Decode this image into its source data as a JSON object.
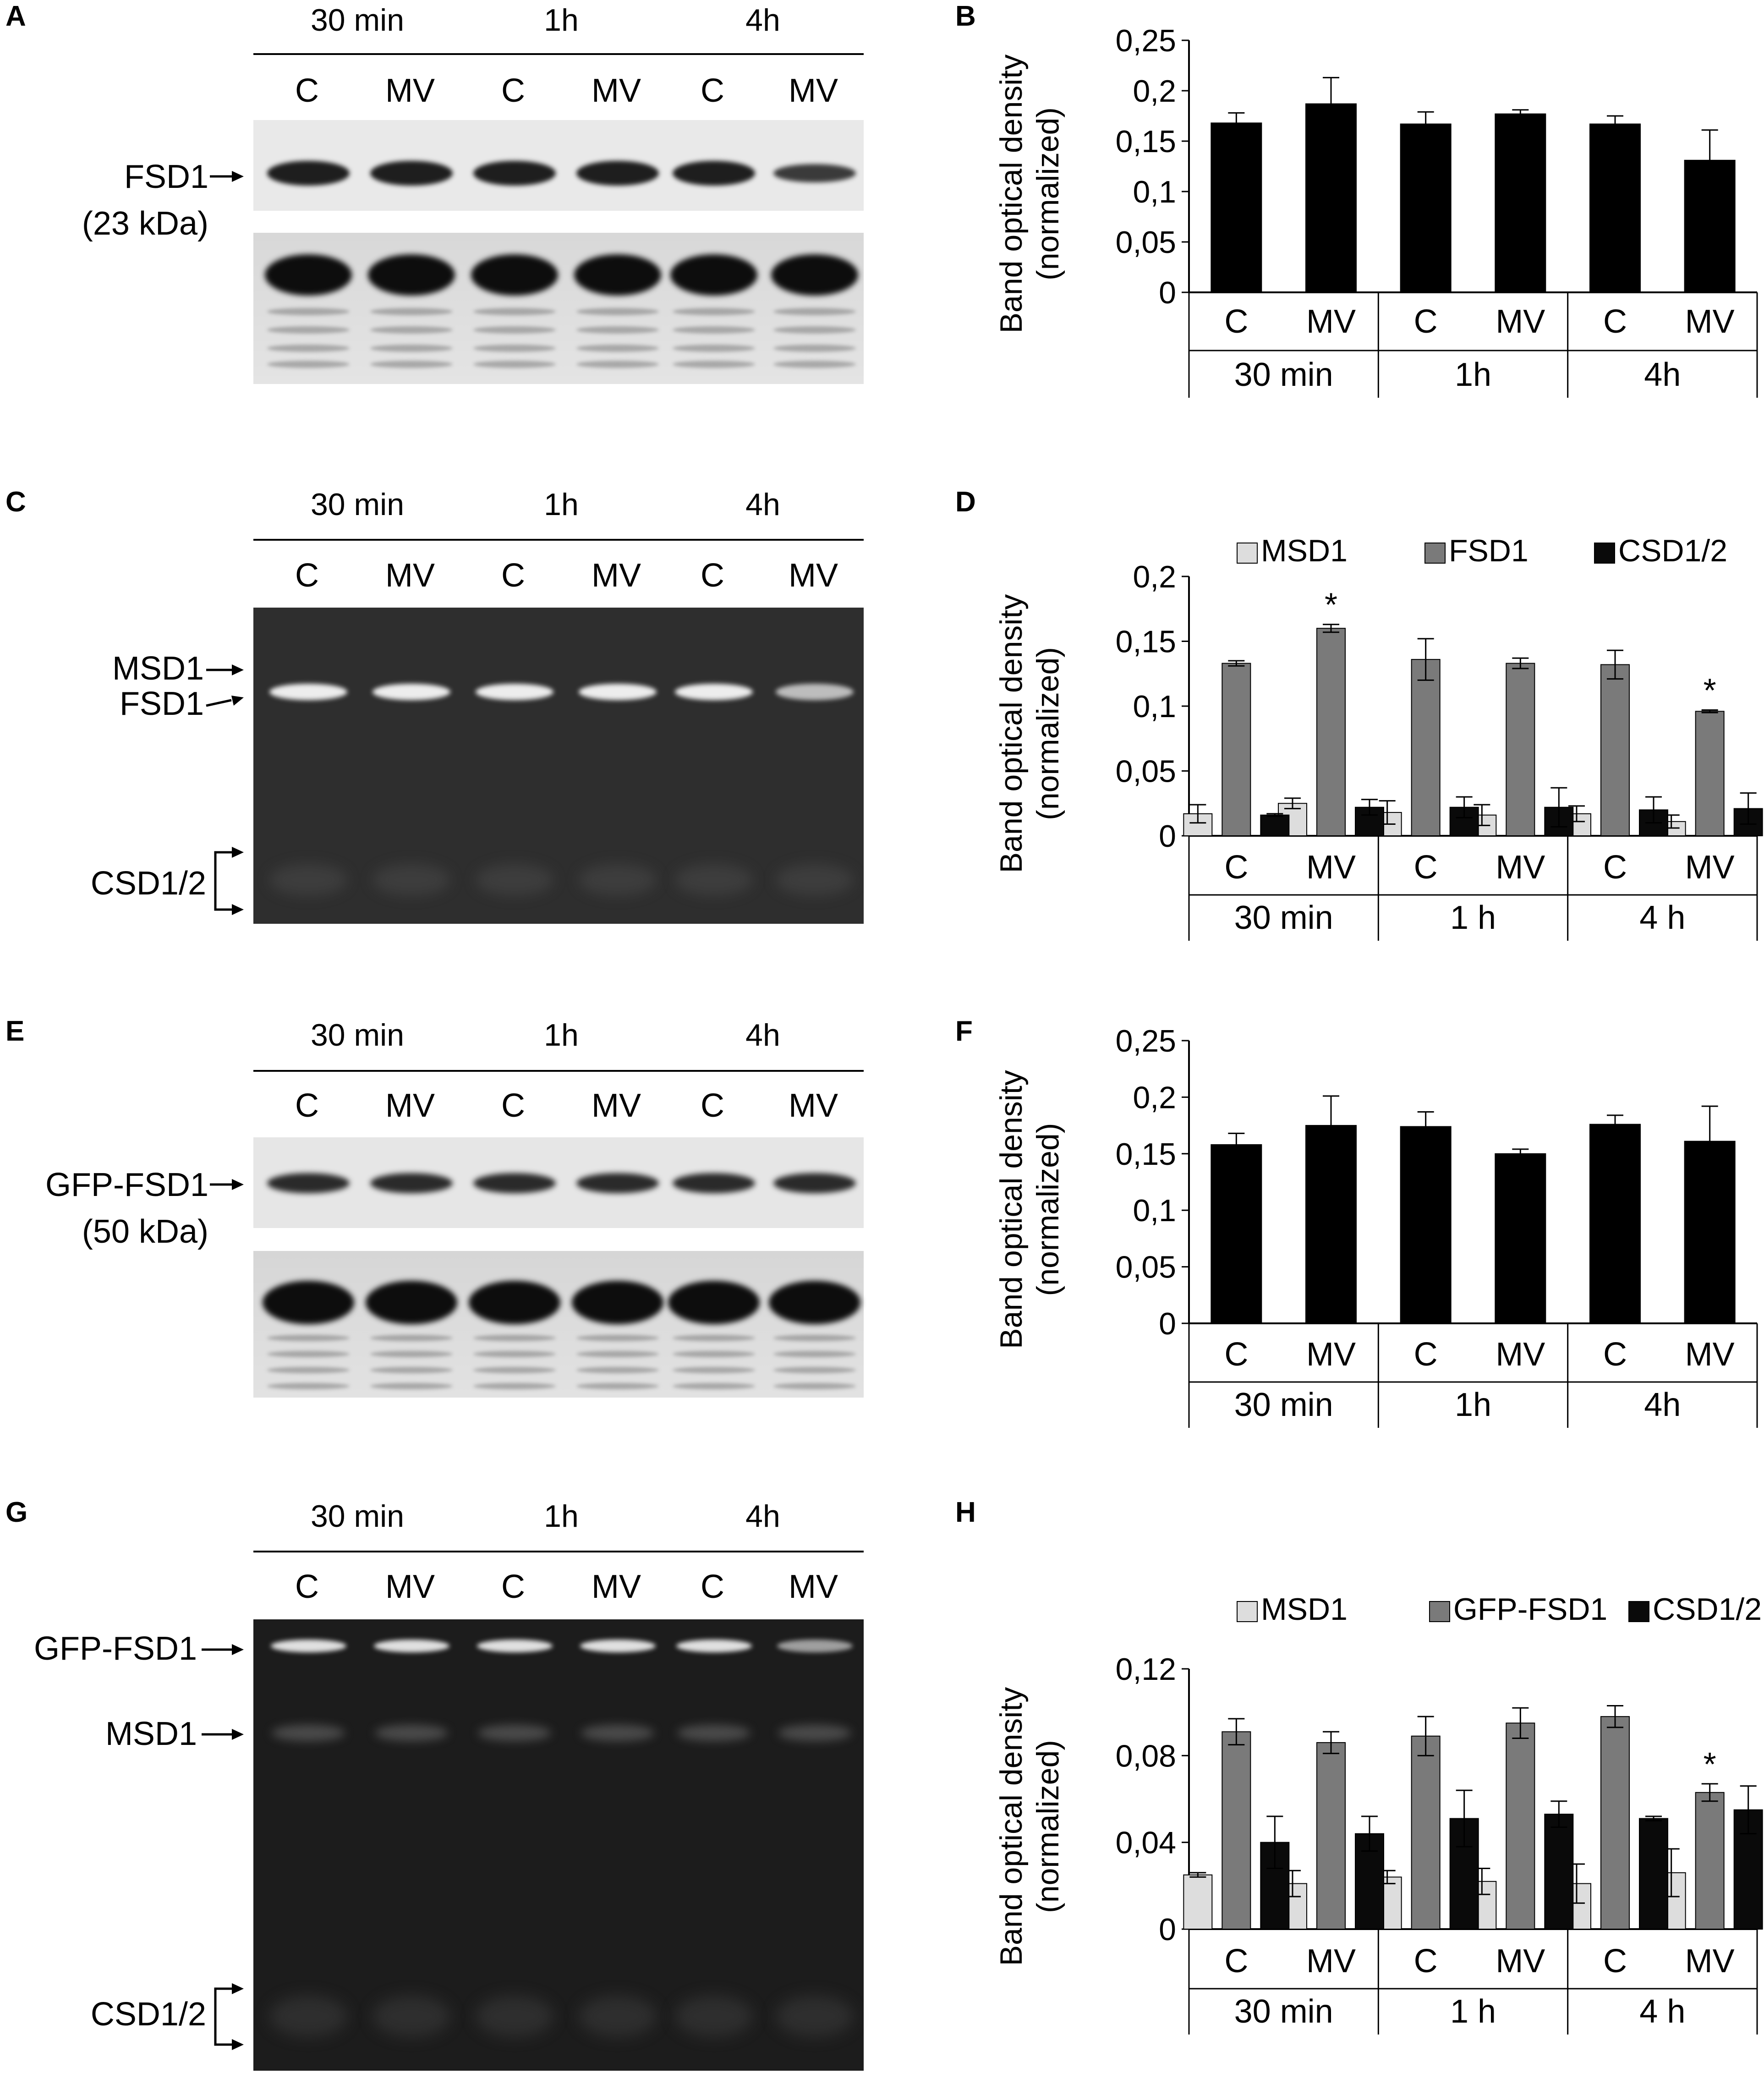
{
  "panels": [
    {
      "letter": "A",
      "times": [
        "30 min",
        "1h",
        "4h"
      ],
      "lanes": [
        "C",
        "MV",
        "C",
        "MV",
        "C",
        "MV"
      ],
      "labels": [
        {
          "text": "FSD1",
          "sub": "(23 kDa)"
        }
      ],
      "kind": "western"
    },
    {
      "letter": "C",
      "times": [
        "30 min",
        "1h",
        "4h"
      ],
      "lanes": [
        "C",
        "MV",
        "C",
        "MV",
        "C",
        "MV"
      ],
      "labels": [
        {
          "text": "MSD1"
        },
        {
          "text": "FSD1"
        },
        {
          "text": "CSD1/2"
        }
      ],
      "kind": "zymo"
    },
    {
      "letter": "E",
      "times": [
        "30 min",
        "1h",
        "4h"
      ],
      "lanes": [
        "C",
        "MV",
        "C",
        "MV",
        "C",
        "MV"
      ],
      "labels": [
        {
          "text": "GFP-FSD1",
          "sub": "(50 kDa)"
        }
      ],
      "kind": "western"
    },
    {
      "letter": "G",
      "times": [
        "30 min",
        "1h",
        "4h"
      ],
      "lanes": [
        "C",
        "MV",
        "C",
        "MV",
        "C",
        "MV"
      ],
      "labels": [
        {
          "text": "GFP-FSD1"
        },
        {
          "text": "MSD1"
        },
        {
          "text": "CSD1/2"
        }
      ],
      "kind": "zymo"
    }
  ],
  "chart_data": [
    {
      "panel": "B",
      "type": "bar",
      "ylabel": "Band optical density",
      "ylabel2": "(normalized)",
      "ylim": [
        0,
        0.25
      ],
      "yticks": [
        "0",
        "0,05",
        "0,1",
        "0,15",
        "0,2",
        "0,25"
      ],
      "categories": [
        "C",
        "MV",
        "C",
        "MV",
        "C",
        "MV"
      ],
      "groups": [
        "30 min",
        "1h",
        "4h"
      ],
      "series": [
        {
          "color": "#000000",
          "values": [
            0.168,
            0.187,
            0.167,
            0.177,
            0.167,
            0.131
          ],
          "errors": [
            0.01,
            0.026,
            0.012,
            0.004,
            0.008,
            0.03
          ]
        }
      ],
      "stars": []
    },
    {
      "panel": "D",
      "type": "bar",
      "ylabel": "Band optical density",
      "ylabel2": "(normalized)",
      "ylim": [
        0,
        0.2
      ],
      "yticks": [
        "0",
        "0,05",
        "0,1",
        "0,15",
        "0,2"
      ],
      "categories": [
        "C",
        "MV",
        "C",
        "MV",
        "C",
        "MV"
      ],
      "groups": [
        "30 min",
        "1 h",
        "4 h"
      ],
      "legend": [
        "MSD1",
        "FSD1",
        "CSD1/2"
      ],
      "series": [
        {
          "name": "MSD1",
          "color": "#dddddd",
          "values": [
            0.017,
            0.025,
            0.018,
            0.016,
            0.017,
            0.011
          ],
          "errors": [
            0.007,
            0.004,
            0.009,
            0.008,
            0.006,
            0.005
          ]
        },
        {
          "name": "FSD1",
          "color": "#7a7a7a",
          "values": [
            0.133,
            0.16,
            0.136,
            0.133,
            0.132,
            0.096
          ],
          "errors": [
            0.002,
            0.003,
            0.016,
            0.004,
            0.011,
            0.001
          ]
        },
        {
          "name": "CSD1/2",
          "color": "#0a0a0a",
          "values": [
            0.016,
            0.022,
            0.022,
            0.022,
            0.02,
            0.021
          ],
          "errors": [
            0.001,
            0.006,
            0.008,
            0.015,
            0.01,
            0.012
          ]
        }
      ],
      "stars": [
        {
          "index": 1,
          "label": "*"
        },
        {
          "index": 5,
          "label": "*"
        }
      ]
    },
    {
      "panel": "F",
      "type": "bar",
      "ylabel": "Band optical density",
      "ylabel2": "(normalized)",
      "ylim": [
        0,
        0.25
      ],
      "yticks": [
        "0",
        "0,05",
        "0,1",
        "0,15",
        "0,2",
        "0,25"
      ],
      "categories": [
        "C",
        "MV",
        "C",
        "MV",
        "C",
        "MV"
      ],
      "groups": [
        "30 min",
        "1h",
        "4h"
      ],
      "series": [
        {
          "color": "#000000",
          "values": [
            0.158,
            0.175,
            0.174,
            0.15,
            0.176,
            0.161
          ],
          "errors": [
            0.01,
            0.026,
            0.013,
            0.004,
            0.008,
            0.031
          ]
        }
      ],
      "stars": []
    },
    {
      "panel": "H",
      "type": "bar",
      "ylabel": "Band optical density",
      "ylabel2": "(normalized)",
      "ylim": [
        0,
        0.12
      ],
      "yticks": [
        "0",
        "0,04",
        "0,08",
        "0,12"
      ],
      "categories": [
        "C",
        "MV",
        "C",
        "MV",
        "C",
        "MV"
      ],
      "groups": [
        "30 min",
        "1 h",
        "4 h"
      ],
      "legend": [
        "MSD1",
        "GFP-FSD1",
        "CSD1/2"
      ],
      "series": [
        {
          "name": "MSD1",
          "color": "#dddddd",
          "values": [
            0.025,
            0.021,
            0.024,
            0.022,
            0.021,
            0.026
          ],
          "errors": [
            0.001,
            0.006,
            0.003,
            0.006,
            0.009,
            0.011
          ]
        },
        {
          "name": "GFP-FSD1",
          "color": "#7a7a7a",
          "values": [
            0.091,
            0.086,
            0.089,
            0.095,
            0.098,
            0.063
          ],
          "errors": [
            0.006,
            0.005,
            0.009,
            0.007,
            0.005,
            0.004
          ]
        },
        {
          "name": "CSD1/2",
          "color": "#0a0a0a",
          "values": [
            0.04,
            0.044,
            0.051,
            0.053,
            0.051,
            0.055
          ],
          "errors": [
            0.012,
            0.008,
            0.013,
            0.006,
            0.001,
            0.011
          ]
        }
      ],
      "stars": [
        {
          "index": 5,
          "label": "*"
        }
      ]
    }
  ]
}
